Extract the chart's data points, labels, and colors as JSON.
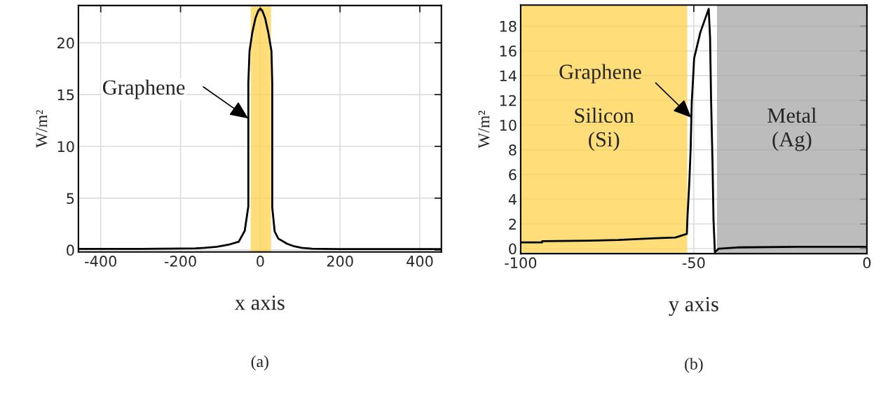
{
  "chart_data": [
    {
      "type": "line",
      "xlabel": "x axis",
      "ylabel": "W/m²",
      "xlim": [
        -456,
        454
      ],
      "ylim": [
        -0.2,
        23.6
      ],
      "xticks": [
        -400,
        -200,
        0,
        200,
        400
      ],
      "yticks": [
        0,
        5,
        10,
        15,
        20
      ],
      "grid": true,
      "legend": false,
      "series": [
        {
          "color": "#000000",
          "x": [
            -456,
            -300,
            -163,
            -140,
            -109,
            -80,
            -54,
            -39,
            -30,
            -30,
            -27,
            -20,
            -12,
            -5,
            0,
            5,
            12,
            20,
            28,
            30,
            30,
            36,
            45,
            67,
            85,
            104,
            130,
            158,
            200,
            300,
            454
          ],
          "values": [
            0.1,
            0.1,
            0.15,
            0.2,
            0.3,
            0.5,
            0.8,
            1.85,
            4.2,
            16.1,
            19.2,
            21.0,
            22.4,
            23.1,
            23.3,
            23.1,
            22.4,
            21.0,
            19.2,
            16.1,
            4.1,
            1.8,
            1.1,
            0.6,
            0.35,
            0.2,
            0.12,
            0.1,
            0.08,
            0.08,
            0.08
          ]
        }
      ],
      "bands": [
        {
          "axis": "x",
          "from": -24,
          "to": 27,
          "color": "#ffd34d"
        }
      ],
      "annotations": [
        {
          "text": "Graphene",
          "x": -30,
          "y": 12.7
        },
        "(a)"
      ]
    },
    {
      "type": "line",
      "xlabel": "y axis",
      "ylabel": "W/m²",
      "xlim": [
        -100,
        0
      ],
      "ylim": [
        -0.4,
        19.7
      ],
      "xticks": [
        -100,
        -50,
        0
      ],
      "yticks": [
        0,
        2,
        4,
        6,
        8,
        10,
        12,
        14,
        16,
        18
      ],
      "grid": true,
      "legend": false,
      "series": [
        {
          "color": "#000000",
          "x": [
            -100,
            -93.8,
            -93.8,
            -80,
            -71.8,
            -61,
            -55.3,
            -52,
            -51.8,
            -51.3,
            -50.9,
            -50.6,
            -50.2,
            -49.9,
            -48.1,
            -45.7,
            -45.3,
            -45,
            -44.6,
            -44.3,
            -43.9,
            -42.8,
            -37.4,
            -20,
            0
          ],
          "values": [
            0.5,
            0.5,
            0.6,
            0.65,
            0.7,
            0.85,
            0.9,
            1.2,
            2.7,
            5.3,
            8.15,
            11.8,
            13.8,
            15.4,
            17.5,
            19.4,
            17.1,
            12.0,
            7.1,
            2.3,
            -0.3,
            0.0,
            0.1,
            0.15,
            0.15
          ]
        }
      ],
      "bands": [
        {
          "axis": "x",
          "from": -100,
          "to": -51.9,
          "color": "#ffd34d",
          "label": "Silicon\n(Si)"
        },
        {
          "axis": "x",
          "from": -43.3,
          "to": 0,
          "color": "#a6a6a6",
          "label": "Metal\n(Ag)"
        }
      ],
      "annotations": [
        {
          "text": "Graphene",
          "x": -50.7,
          "y": 10.6
        },
        "(b)"
      ]
    }
  ]
}
